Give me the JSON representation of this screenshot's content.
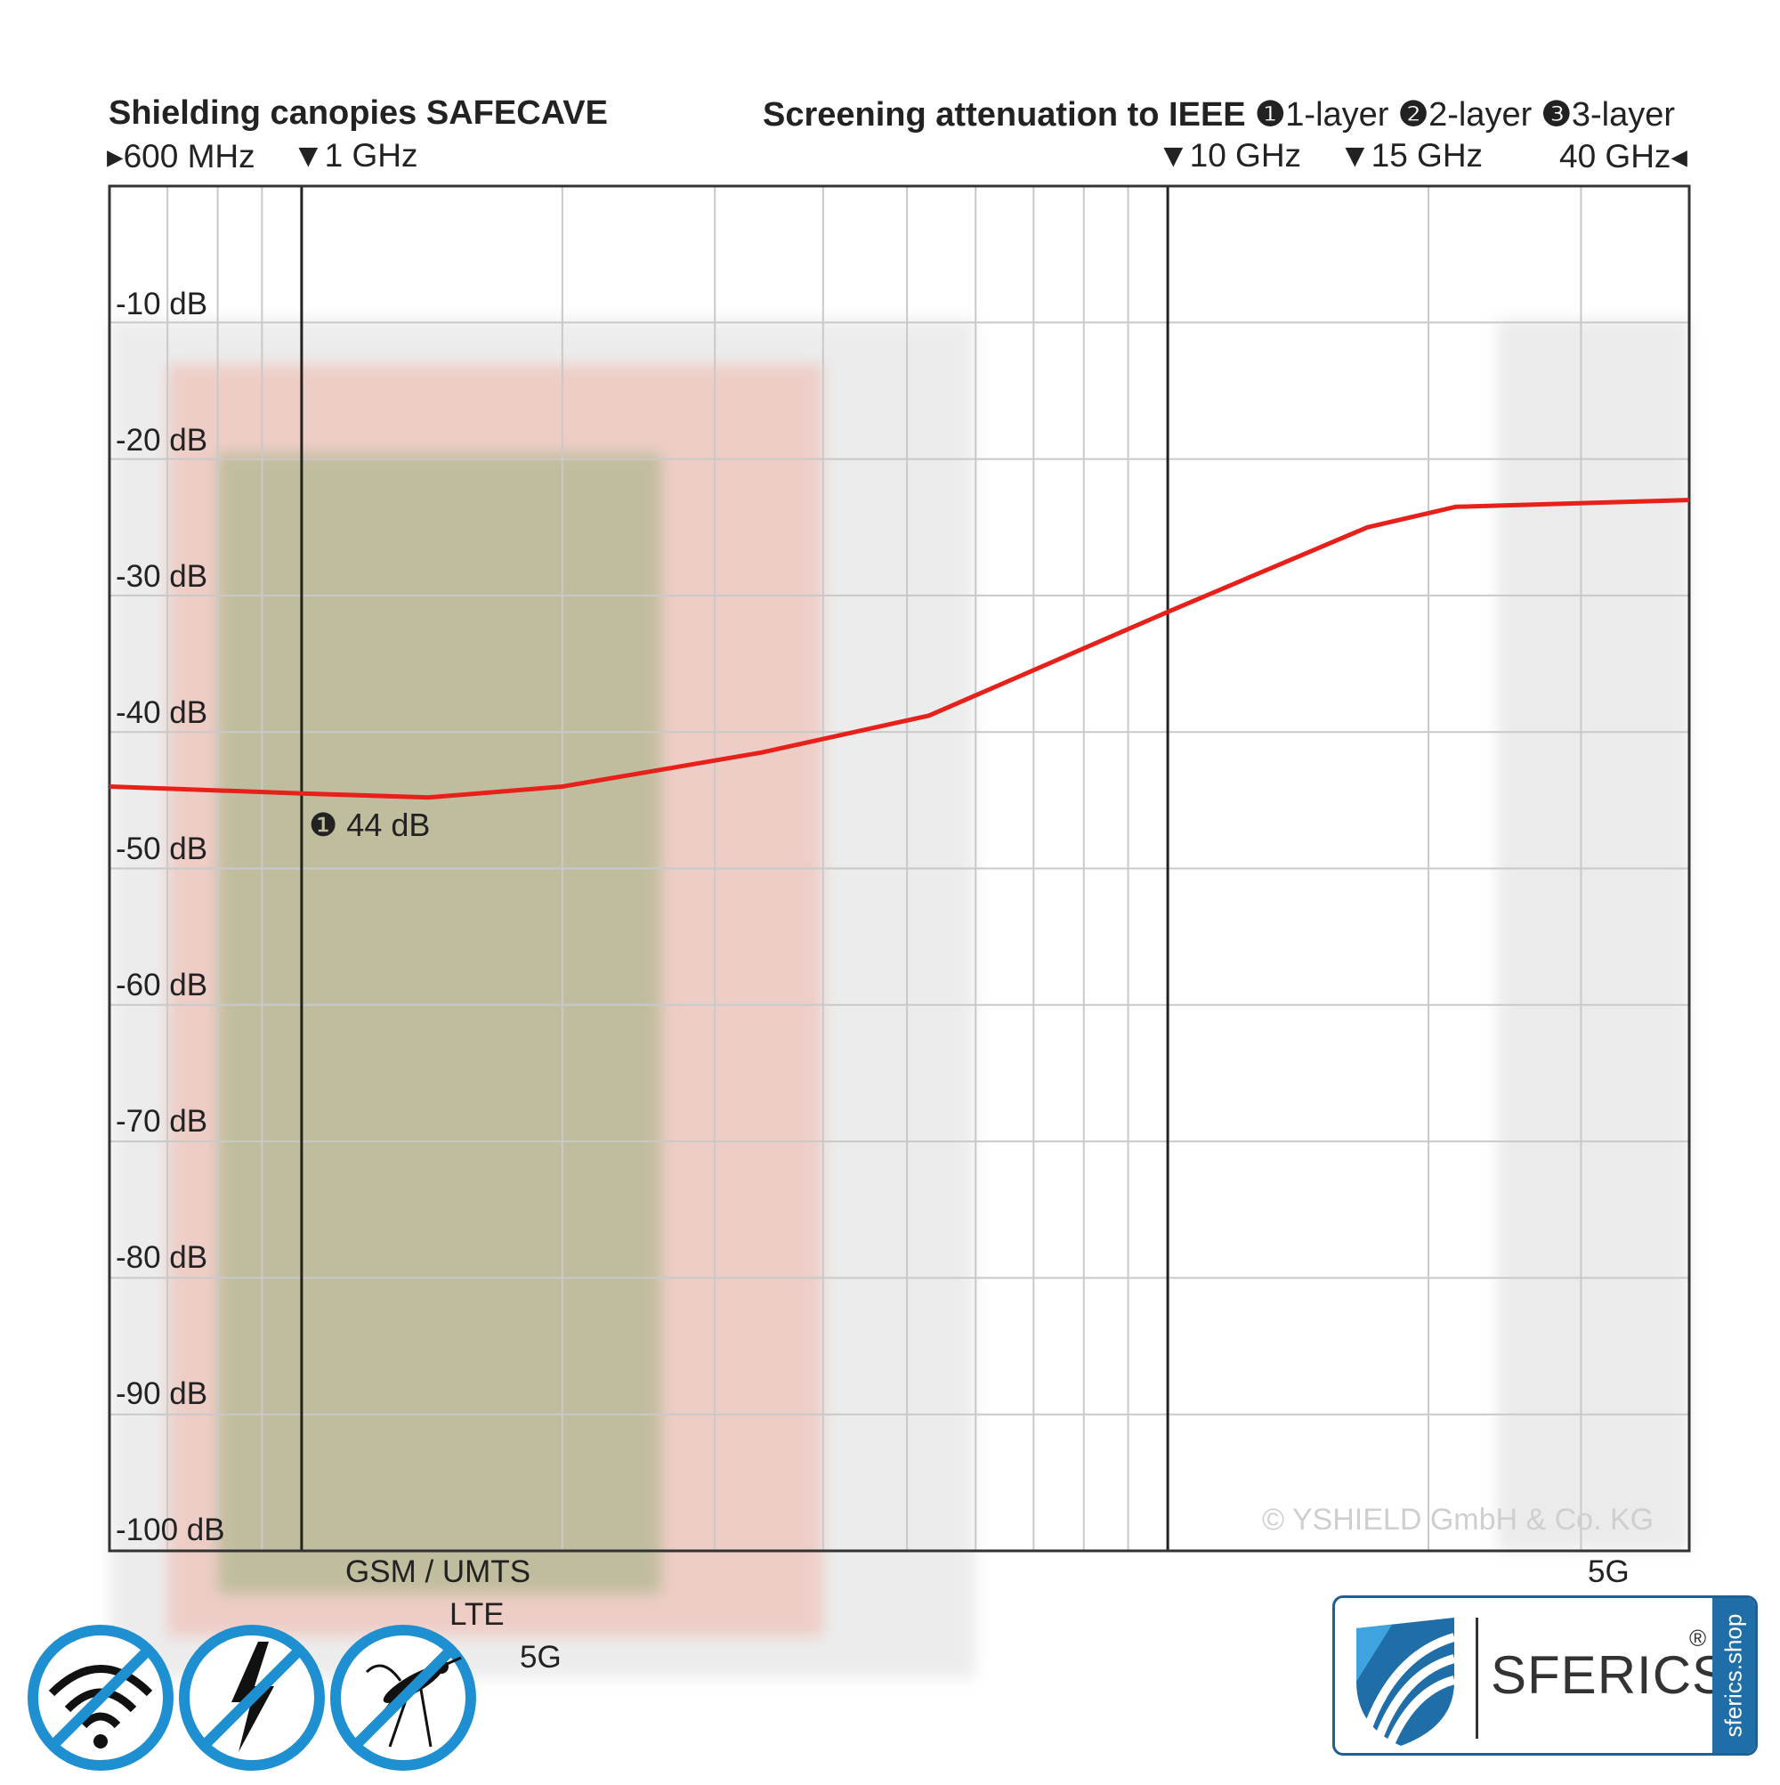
{
  "header": {
    "title": "Shielding canopies SAFECAVE",
    "subtitle": "Screening attenuation to IEEE",
    "layers": [
      {
        "num": "❶",
        "label": "1-layer"
      },
      {
        "num": "❷",
        "label": "2-layer"
      },
      {
        "num": "❸",
        "label": "3-layer"
      }
    ]
  },
  "freq_markers": [
    {
      "label": "▸600 MHz",
      "ghz": 0.6
    },
    {
      "label": "▼1 GHz",
      "ghz": 1
    },
    {
      "label": "▼10 GHz",
      "ghz": 10
    },
    {
      "label": "▼15 GHz",
      "ghz": 15
    },
    {
      "label": "40 GHz◂",
      "ghz": 40
    }
  ],
  "chart_data": {
    "type": "line",
    "x_scale": "log",
    "x_unit": "GHz",
    "xlim": [
      0.6,
      40
    ],
    "ylim": [
      -100,
      0
    ],
    "y_ticks": [
      "-10 dB",
      "-20 dB",
      "-30 dB",
      "-40 dB",
      "-50 dB",
      "-60 dB",
      "-70 dB",
      "-80 dB",
      "-90 dB",
      "-100 dB"
    ],
    "grid": true,
    "series": [
      {
        "color": "#e8201a",
        "points": [
          {
            "x": 0.6,
            "y": -44.0
          },
          {
            "x": 1.0,
            "y": -44.5
          },
          {
            "x": 1.4,
            "y": -44.8
          },
          {
            "x": 2.0,
            "y": -44.0
          },
          {
            "x": 3.4,
            "y": -41.5
          },
          {
            "x": 5.3,
            "y": -38.8
          },
          {
            "x": 10.0,
            "y": -31.2
          },
          {
            "x": 17.0,
            "y": -25.0
          },
          {
            "x": 21.5,
            "y": -23.5
          },
          {
            "x": 40.0,
            "y": -23.0
          }
        ]
      }
    ],
    "annotation": {
      "num": "❶",
      "text": "44 dB",
      "x": 1.0,
      "y": -44.5
    },
    "bands": [
      {
        "label": "GSM / UMTS",
        "from": 0.8,
        "to": 2.6,
        "color": "#9bb07e"
      },
      {
        "label": "LTE",
        "from": 0.7,
        "to": 4.0,
        "color": "#f2a89a"
      },
      {
        "label": "5G",
        "from": 0.6,
        "to": 6.0,
        "color": "#d7d7d7"
      },
      {
        "label": "5G",
        "from": 24.0,
        "to": 40.0,
        "color": "#dcdcdc"
      }
    ],
    "copyright": "© YSHIELD GmbH & Co. KG"
  },
  "icons": [
    "no-wifi-icon",
    "no-electric-field-icon",
    "no-mosquito-icon"
  ],
  "logo": {
    "name": "SFERICS",
    "reg": "®",
    "side": "sferics.shop"
  }
}
